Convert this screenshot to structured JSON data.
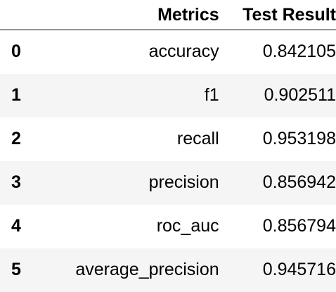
{
  "table": {
    "columns": [
      "Metrics",
      "Test Result"
    ],
    "rows": [
      {
        "index": "0",
        "metric": "accuracy",
        "result": "0.842105"
      },
      {
        "index": "1",
        "metric": "f1",
        "result": "0.902511"
      },
      {
        "index": "2",
        "metric": "recall",
        "result": "0.953198"
      },
      {
        "index": "3",
        "metric": "precision",
        "result": "0.856942"
      },
      {
        "index": "4",
        "metric": "roc_auc",
        "result": "0.856794"
      },
      {
        "index": "5",
        "metric": "average_precision",
        "result": "0.945716"
      }
    ]
  },
  "colors": {
    "text": "#000000",
    "stripe": "#f5f5f5",
    "background": "#ffffff"
  }
}
